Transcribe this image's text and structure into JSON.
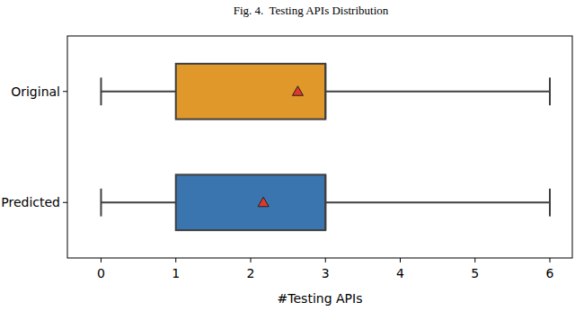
{
  "chart_data": {
    "type": "box",
    "title": "Fig. 4.  Testing APIs Distribution",
    "x_label": "#Testing APIs",
    "orientation": "horizontal",
    "grid": false,
    "marker": "triangle",
    "xlim": [
      -0.45,
      6.3
    ],
    "xticks": [
      0,
      1,
      2,
      3,
      4,
      5,
      6
    ],
    "boxes": [
      {
        "label": "Original",
        "color": "#e1982a",
        "min": 0,
        "q1": 1,
        "median": 3,
        "q3": 3,
        "max": 6,
        "mean": 2.63
      },
      {
        "label": "Predicted",
        "color": "#3b75af",
        "min": 0,
        "q1": 1,
        "median": 3,
        "q3": 3,
        "max": 6,
        "mean": 2.17
      }
    ]
  }
}
